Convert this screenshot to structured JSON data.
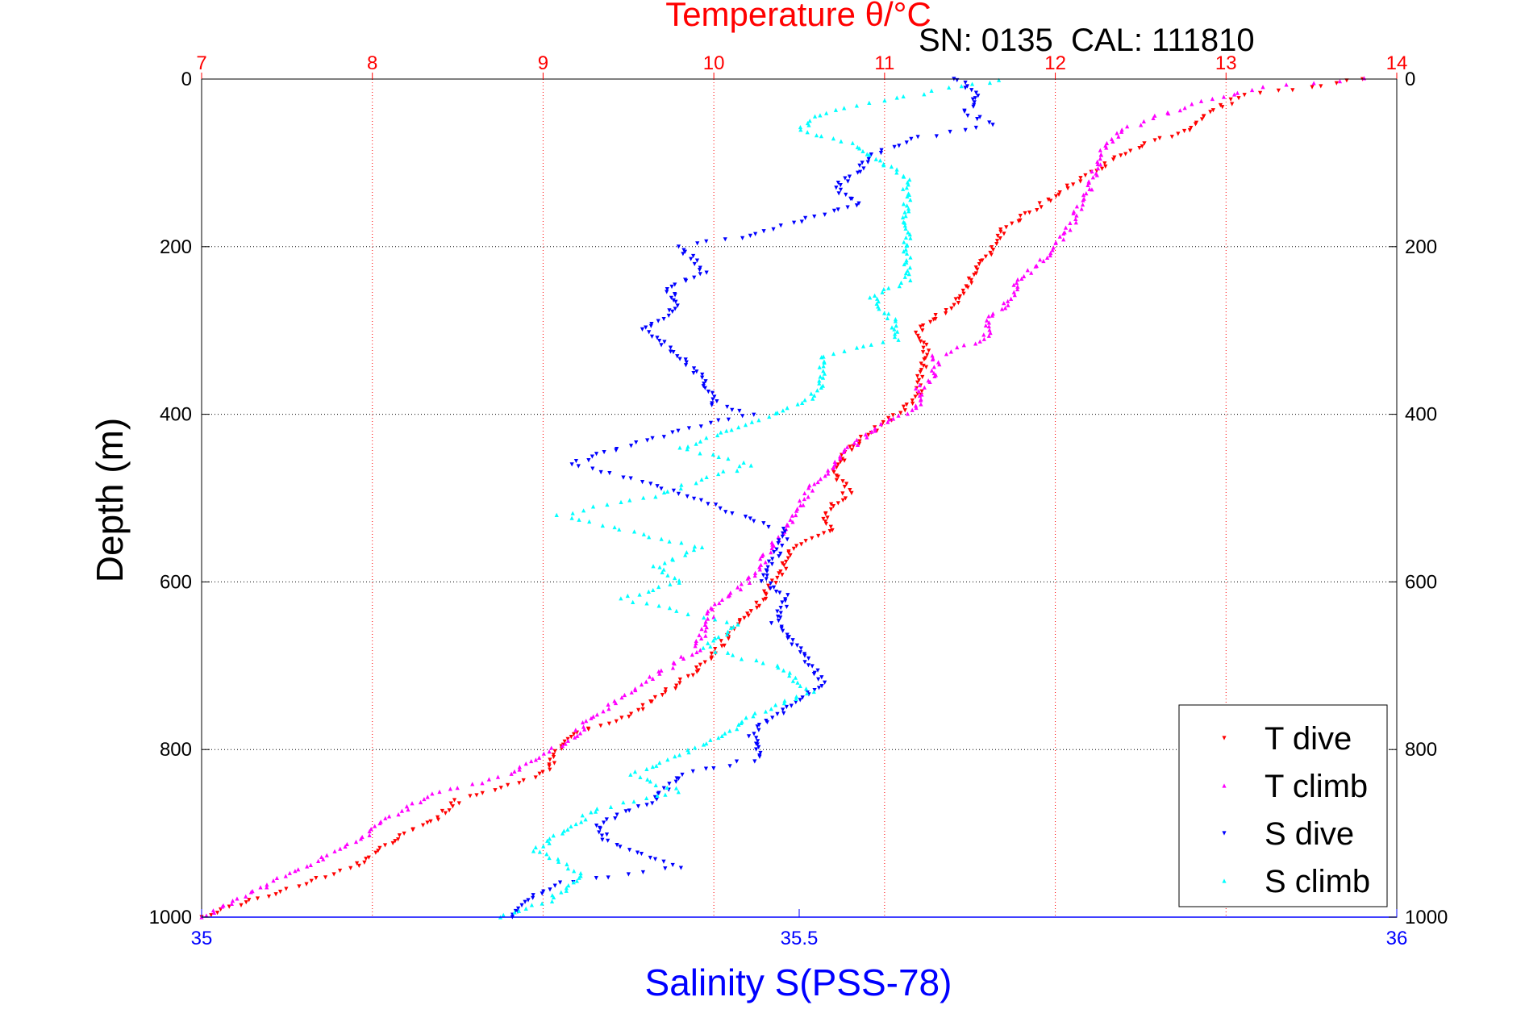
{
  "chart_data": {
    "type": "scatter",
    "title": "Temperature θ/°C",
    "annotation": "SN: 0135  CAL: 111810",
    "ylabel": "Depth (m)",
    "xlabel_bottom": "Salinity S(PSS-78)",
    "xlabel_top": "Temperature θ/°C",
    "y_range": [
      0,
      1000
    ],
    "y_reversed": true,
    "y_ticks": [
      "0",
      "200",
      "400",
      "600",
      "800",
      "1000"
    ],
    "x_top_range": [
      7,
      14
    ],
    "x_top_ticks": [
      "7",
      "8",
      "9",
      "10",
      "11",
      "12",
      "13",
      "14"
    ],
    "x_bottom_range": [
      35,
      36
    ],
    "x_bottom_ticks": [
      "35",
      "35.5",
      "36"
    ],
    "grid": true,
    "legend_position": "bottom-right",
    "colors": {
      "temperature_axis": "#ff0000",
      "salinity_axis": "#0000ff",
      "t_dive": "#ff0000",
      "t_climb": "#ff00ff",
      "s_dive": "#0000ff",
      "s_climb": "#00ffff"
    },
    "series": [
      {
        "name": "T dive",
        "axis": "temperature",
        "color": "#ff0000",
        "marker": "triangle-down",
        "points": [
          [
            13.8,
            0
          ],
          [
            13.5,
            10
          ],
          [
            13.1,
            20
          ],
          [
            12.9,
            40
          ],
          [
            12.8,
            60
          ],
          [
            12.5,
            80
          ],
          [
            12.3,
            100
          ],
          [
            12.0,
            140
          ],
          [
            11.7,
            180
          ],
          [
            11.65,
            200
          ],
          [
            11.5,
            240
          ],
          [
            11.4,
            270
          ],
          [
            11.2,
            300
          ],
          [
            11.25,
            330
          ],
          [
            11.2,
            360
          ],
          [
            11.2,
            380
          ],
          [
            11.0,
            410
          ],
          [
            10.8,
            440
          ],
          [
            10.7,
            470
          ],
          [
            10.8,
            490
          ],
          [
            10.65,
            520
          ],
          [
            10.7,
            540
          ],
          [
            10.45,
            560
          ],
          [
            10.4,
            590
          ],
          [
            10.2,
            640
          ],
          [
            10.1,
            660
          ],
          [
            10.0,
            690
          ],
          [
            9.8,
            720
          ],
          [
            9.5,
            760
          ],
          [
            9.2,
            780
          ],
          [
            9.1,
            800
          ],
          [
            9.0,
            830
          ],
          [
            8.5,
            860
          ],
          [
            8.4,
            880
          ],
          [
            8.2,
            900
          ],
          [
            7.9,
            940
          ],
          [
            7.6,
            960
          ],
          [
            7.3,
            980
          ],
          [
            7.0,
            1000
          ]
        ]
      },
      {
        "name": "T climb",
        "axis": "temperature",
        "color": "#ff00ff",
        "marker": "triangle-up",
        "points": [
          [
            13.8,
            0
          ],
          [
            13.2,
            10
          ],
          [
            12.8,
            30
          ],
          [
            12.4,
            60
          ],
          [
            12.3,
            80
          ],
          [
            12.25,
            100
          ],
          [
            12.2,
            130
          ],
          [
            12.1,
            170
          ],
          [
            12.0,
            200
          ],
          [
            11.8,
            240
          ],
          [
            11.7,
            270
          ],
          [
            11.6,
            290
          ],
          [
            11.6,
            310
          ],
          [
            11.3,
            330
          ],
          [
            11.3,
            350
          ],
          [
            11.2,
            370
          ],
          [
            11.2,
            390
          ],
          [
            11.0,
            410
          ],
          [
            10.8,
            440
          ],
          [
            10.6,
            480
          ],
          [
            10.5,
            510
          ],
          [
            10.4,
            540
          ],
          [
            10.3,
            570
          ],
          [
            10.2,
            600
          ],
          [
            10.0,
            630
          ],
          [
            9.9,
            680
          ],
          [
            9.6,
            720
          ],
          [
            9.3,
            760
          ],
          [
            9.15,
            790
          ],
          [
            8.8,
            830
          ],
          [
            8.4,
            850
          ],
          [
            8.1,
            880
          ],
          [
            7.9,
            910
          ],
          [
            7.6,
            940
          ],
          [
            7.4,
            960
          ],
          [
            7.2,
            980
          ],
          [
            7.0,
            1000
          ]
        ]
      },
      {
        "name": "S dive",
        "axis": "salinity",
        "color": "#0000ff",
        "marker": "triangle-down",
        "points": [
          [
            35.63,
            0
          ],
          [
            35.65,
            20
          ],
          [
            35.64,
            40
          ],
          [
            35.66,
            55
          ],
          [
            35.6,
            70
          ],
          [
            35.56,
            90
          ],
          [
            35.55,
            110
          ],
          [
            35.53,
            130
          ],
          [
            35.55,
            150
          ],
          [
            35.5,
            170
          ],
          [
            35.45,
            190
          ],
          [
            35.4,
            200
          ],
          [
            35.42,
            230
          ],
          [
            35.39,
            250
          ],
          [
            35.4,
            270
          ],
          [
            35.37,
            300
          ],
          [
            35.4,
            330
          ],
          [
            35.42,
            360
          ],
          [
            35.43,
            390
          ],
          [
            35.46,
            400
          ],
          [
            35.4,
            420
          ],
          [
            35.35,
            440
          ],
          [
            35.31,
            460
          ],
          [
            35.37,
            480
          ],
          [
            35.41,
            500
          ],
          [
            35.49,
            540
          ],
          [
            35.48,
            570
          ],
          [
            35.47,
            600
          ],
          [
            35.49,
            620
          ],
          [
            35.48,
            650
          ],
          [
            35.5,
            680
          ],
          [
            35.52,
            720
          ],
          [
            35.49,
            750
          ],
          [
            35.46,
            780
          ],
          [
            35.47,
            810
          ],
          [
            35.4,
            830
          ],
          [
            35.38,
            860
          ],
          [
            35.33,
            890
          ],
          [
            35.34,
            910
          ],
          [
            35.4,
            940
          ],
          [
            35.3,
            960
          ],
          [
            35.27,
            980
          ],
          [
            35.26,
            1000
          ]
        ]
      },
      {
        "name": "S climb",
        "axis": "salinity",
        "color": "#00ffff",
        "marker": "triangle-up",
        "points": [
          [
            35.67,
            0
          ],
          [
            35.59,
            20
          ],
          [
            35.52,
            40
          ],
          [
            35.5,
            60
          ],
          [
            35.55,
            80
          ],
          [
            35.57,
            100
          ],
          [
            35.59,
            120
          ],
          [
            35.59,
            160
          ],
          [
            35.59,
            200
          ],
          [
            35.59,
            240
          ],
          [
            35.56,
            260
          ],
          [
            35.58,
            290
          ],
          [
            35.58,
            310
          ],
          [
            35.52,
            330
          ],
          [
            35.52,
            360
          ],
          [
            35.51,
            380
          ],
          [
            35.48,
            400
          ],
          [
            35.44,
            420
          ],
          [
            35.4,
            440
          ],
          [
            35.46,
            460
          ],
          [
            35.37,
            500
          ],
          [
            35.3,
            520
          ],
          [
            35.36,
            540
          ],
          [
            35.42,
            560
          ],
          [
            35.38,
            580
          ],
          [
            35.4,
            600
          ],
          [
            35.35,
            620
          ],
          [
            35.45,
            650
          ],
          [
            35.42,
            680
          ],
          [
            35.48,
            700
          ],
          [
            35.51,
            730
          ],
          [
            35.46,
            760
          ],
          [
            35.44,
            780
          ],
          [
            35.41,
            800
          ],
          [
            35.36,
            830
          ],
          [
            35.4,
            850
          ],
          [
            35.33,
            870
          ],
          [
            35.3,
            900
          ],
          [
            35.28,
            920
          ],
          [
            35.32,
            950
          ],
          [
            35.29,
            980
          ],
          [
            35.25,
            1000
          ]
        ]
      }
    ],
    "legend": [
      "T dive",
      "T climb",
      "S dive",
      "S climb"
    ]
  }
}
